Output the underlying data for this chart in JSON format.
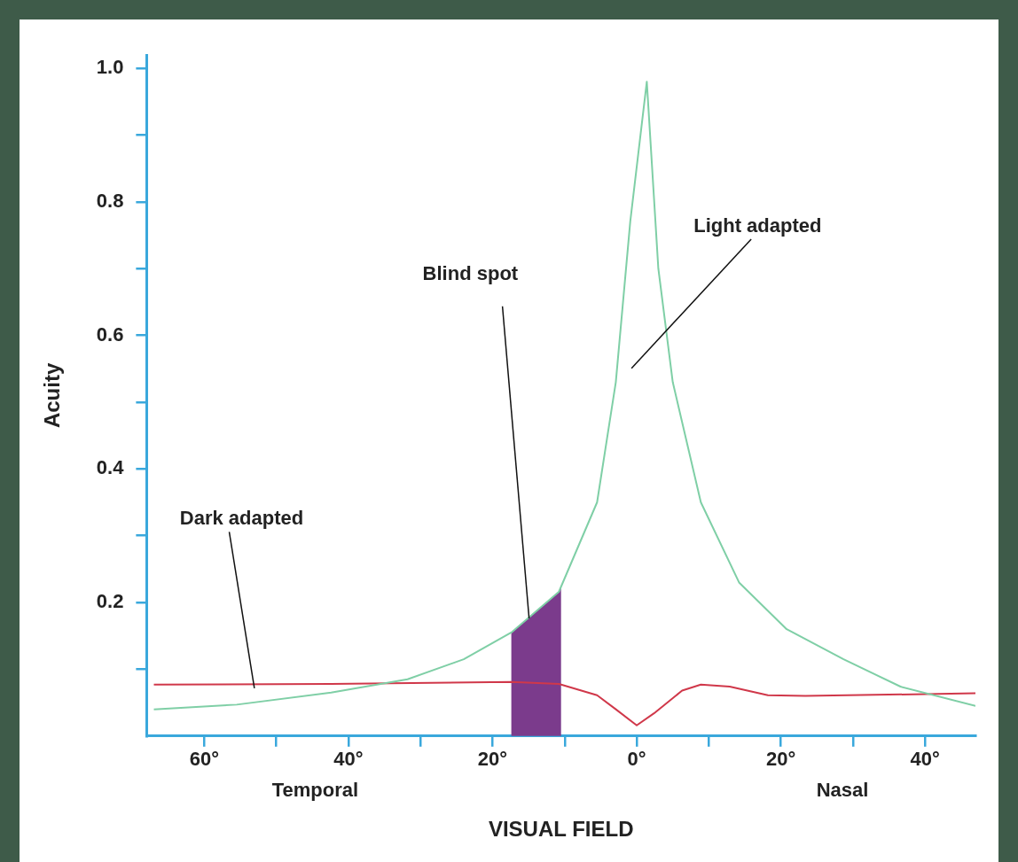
{
  "chart_data": {
    "type": "line",
    "xlabel": "VISUAL FIELD",
    "ylabel": "Acuity",
    "xlim": [
      -68,
      47
    ],
    "xticks": [
      {
        "value": -60,
        "label": "60°"
      },
      {
        "value": -50,
        "label": null
      },
      {
        "value": -40,
        "label": "40°"
      },
      {
        "value": -30,
        "label": null
      },
      {
        "value": -20,
        "label": "20°"
      },
      {
        "value": -10,
        "label": null
      },
      {
        "value": 0,
        "label": "0°"
      },
      {
        "value": 10,
        "label": null
      },
      {
        "value": 20,
        "label": "20°"
      },
      {
        "value": 30,
        "label": null
      },
      {
        "value": 40,
        "label": "40°"
      }
    ],
    "ylim": [
      0,
      1.02
    ],
    "yticks": [
      {
        "value": 0.1,
        "label": null
      },
      0.2,
      {
        "value": 0.3,
        "label": null
      },
      0.4,
      {
        "value": 0.5,
        "label": null
      },
      0.6,
      {
        "value": 0.7,
        "label": null
      },
      0.8,
      {
        "value": 0.9,
        "label": null
      },
      {
        "value": 1.0,
        "label": "1.0"
      }
    ],
    "grid": false,
    "legend": false,
    "marker": "none",
    "line_style": "solid",
    "series": [
      {
        "name": "Light adapted",
        "color": "#7fcfa6",
        "x": [
          -67,
          -55.5,
          -42.4,
          -31.8,
          -24,
          -17.4,
          -10.8,
          -5.5,
          -2.9,
          -0.9,
          1.4,
          3,
          5,
          8.9,
          14.2,
          20.8,
          28.7,
          36.6,
          47
        ],
        "values": [
          0.04,
          0.047,
          0.065,
          0.085,
          0.115,
          0.155,
          0.216,
          0.35,
          0.53,
          0.77,
          0.98,
          0.7,
          0.53,
          0.35,
          0.23,
          0.16,
          0.115,
          0.074,
          0.045
        ]
      },
      {
        "name": "Dark adapted",
        "color": "#d0384a",
        "x": [
          -67,
          -42.4,
          -17.4,
          -10.8,
          -5.5,
          -2.9,
          0,
          2.4,
          6.3,
          8.9,
          12.9,
          18.2,
          23.4,
          47
        ],
        "values": [
          0.077,
          0.078,
          0.081,
          0.078,
          0.061,
          0.04,
          0.016,
          0.034,
          0.068,
          0.077,
          0.074,
          0.061,
          0.06,
          0.064
        ]
      }
    ],
    "bands": [
      {
        "axis": "x",
        "from": -17.4,
        "to": -10.5,
        "label": "Blind spot",
        "color": "#7b3b8c"
      }
    ],
    "annotations": [
      "Temporal",
      "Nasal"
    ]
  }
}
